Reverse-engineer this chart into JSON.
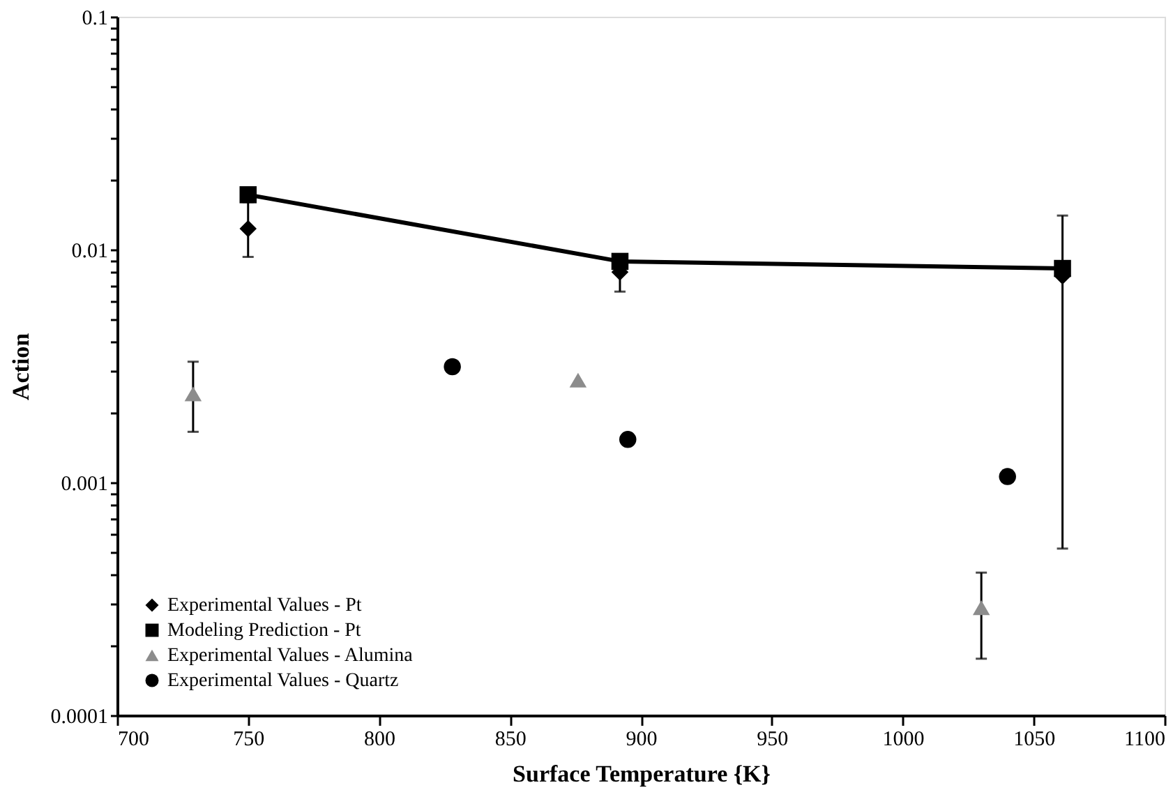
{
  "chart_data": {
    "type": "scatter",
    "xlabel": "Surface Temperature {K}",
    "ylabel": "Action",
    "xlim": [
      700,
      1100
    ],
    "xticks": [
      700,
      750,
      800,
      850,
      900,
      950,
      1000,
      1050,
      1100
    ],
    "ylim": [
      0.0001,
      0.1
    ],
    "log": "y",
    "yticks": [
      0.0001,
      {
        "value": 0.0002,
        "label": null
      },
      {
        "value": 0.0003,
        "label": null
      },
      {
        "value": 0.0004,
        "label": null
      },
      {
        "value": 0.0005,
        "label": null
      },
      {
        "value": 0.0006,
        "label": null
      },
      {
        "value": 0.0007,
        "label": null
      },
      {
        "value": 0.0008,
        "label": null
      },
      {
        "value": 0.0009,
        "label": null
      },
      0.001,
      {
        "value": 0.002,
        "label": null
      },
      {
        "value": 0.003,
        "label": null
      },
      {
        "value": 0.004,
        "label": null
      },
      {
        "value": 0.005,
        "label": null
      },
      {
        "value": 0.006,
        "label": null
      },
      {
        "value": 0.007,
        "label": null
      },
      {
        "value": 0.008,
        "label": null
      },
      {
        "value": 0.009,
        "label": null
      },
      0.01,
      {
        "value": 0.02,
        "label": null
      },
      {
        "value": 0.03,
        "label": null
      },
      {
        "value": 0.04,
        "label": null
      },
      {
        "value": 0.05,
        "label": null
      },
      {
        "value": 0.06,
        "label": null
      },
      {
        "value": 0.07,
        "label": null
      },
      {
        "value": 0.08,
        "label": null
      },
      {
        "value": 0.09,
        "label": null
      },
      0.1
    ],
    "grid": false,
    "legend": "bottom left",
    "series": [
      {
        "name": "Experimental Values - Pt",
        "marker": "diamond",
        "color": "#000000",
        "x": [
          750,
          892,
          1061
        ],
        "values": [
          0.0123,
          0.008,
          0.0077
        ],
        "errors": [
          [
            0.0093,
            0.016
          ],
          [
            0.0066,
            0.008
          ],
          [
            0.00052,
            0.014
          ]
        ]
      },
      {
        "name": "Modeling Prediction - Pt",
        "type": "line",
        "marker": "square",
        "line_style": "solid",
        "color": "#000000",
        "x": [
          750,
          892,
          1061
        ],
        "values": [
          0.0172,
          0.0089,
          0.0083
        ]
      },
      {
        "name": "Experimental Values - Alumina",
        "marker": "triangle",
        "color": "#8c8c8c",
        "x": [
          729,
          876,
          1030
        ],
        "values": [
          0.0024,
          0.00275,
          0.00029
        ],
        "errors": [
          [
            0.00165,
            0.0033
          ],
          null,
          [
            0.000175,
            0.00041
          ]
        ]
      },
      {
        "name": "Experimental Values - Quartz",
        "marker": "circle",
        "color": "#000000",
        "x": [
          828,
          895,
          1040
        ],
        "values": [
          0.00314,
          0.00153,
          0.00106
        ]
      }
    ]
  }
}
